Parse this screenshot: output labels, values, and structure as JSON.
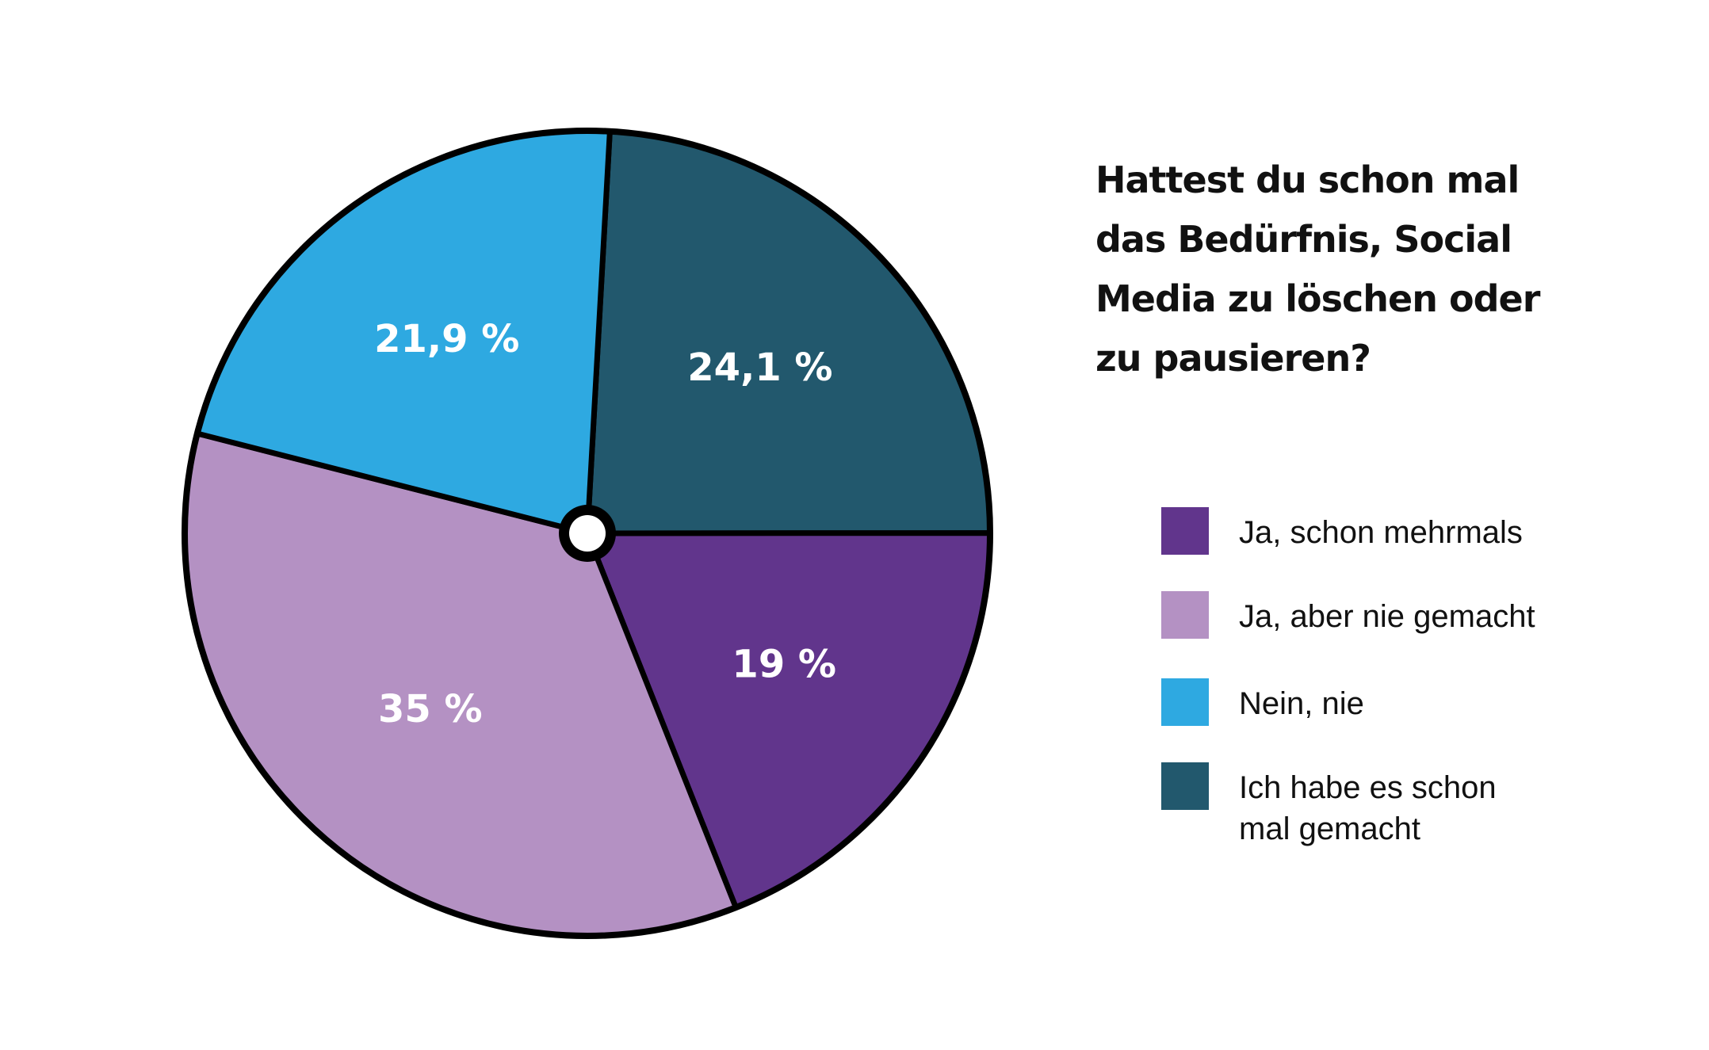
{
  "chart_data": {
    "type": "pie",
    "title_lines": [
      "Hattest du schon mal",
      "das Bedürfnis, Social",
      "Media zu löschen oder",
      "zu pausieren?"
    ],
    "slices": [
      {
        "name": "Ich habe es schon mal gemacht",
        "value": 24.1,
        "label": "24,1 %",
        "color": "#22586d"
      },
      {
        "name": "Ja, schon mehrmals",
        "value": 19,
        "label": "19 %",
        "color": "#61358c"
      },
      {
        "name": "Ja, aber nie gemacht",
        "value": 35,
        "label": "35 %",
        "color": "#b491c3"
      },
      {
        "name": "Nein, nie",
        "value": 21.9,
        "label": "21,9 %",
        "color": "#2ea9e1"
      }
    ],
    "legend": [
      {
        "lines": [
          "Ja, schon mehrmals"
        ],
        "color": "#61358c"
      },
      {
        "lines": [
          "Ja, aber nie gemacht"
        ],
        "color": "#b491c3"
      },
      {
        "lines": [
          "Nein, nie"
        ],
        "color": "#2ea9e1"
      },
      {
        "lines": [
          "Ich habe es schon",
          "mal gemacht"
        ],
        "color": "#22586d"
      }
    ],
    "legend_placement": "right",
    "center_marker": "ring"
  }
}
